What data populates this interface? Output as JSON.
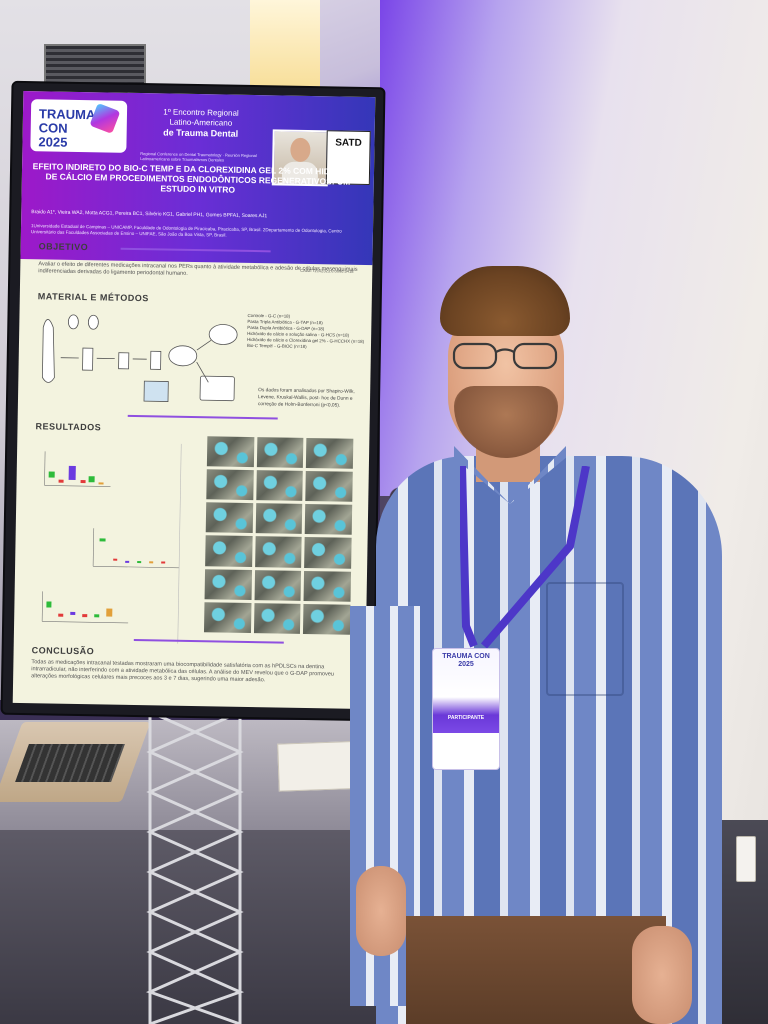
{
  "poster": {
    "logo": "TRAUMA CON 2025",
    "event_line1": "1º Encontro Regional",
    "event_line2": "Latino-Americano",
    "event_line3": "de Trauma Dental",
    "event_sub": "Regional Conference on Dental Traumatology · Reunión Regional Latinoamericana sobre Traumatismos Dentales",
    "society": "SATD",
    "title": "EFEITO INDIRETO DO BIO-C TEMP E DA CLOREXIDINA GEL 2% COM HIDRÓXIDO DE CÁLCIO EM PROCEDIMENTOS ENDODÔNTICOS REGENERATIVOS: UM ESTUDO IN VITRO",
    "authors": "Braido A1*, Vieira WA2, Motta ACG1, Pereira BC1, Silvério KG1, Gabriel PH1, Gomes BPFA1, Soares AJ1",
    "affiliations": "1Universidade Estadual de Campinas – UNICAMP, Faculdade de Odontologia de Piracicaba, Piracicaba, SP, Brasil. 2Departamento de Odontologia, Centro Universitário das Faculdades Associadas de Ensino – UNIFAE, São João da Boa Vista, SP, Brasil.",
    "caae": "CAAE:72102323.0.0000.5418",
    "objective_heading": "OBJETIVO",
    "objective_text": "Avaliar o efeito de diferentes medicações intracanal nos PERs quanto à atividade metabólica e adesão de células mesenquimais indiferenciadas derivadas do ligamento periodontal humano.",
    "methods_heading": "MATERIAL E MÉTODOS",
    "groups": [
      "Controle - G-C (n=18)",
      "Pasta Tripla Antibiótica - G-TAP (n=18)",
      "Pasta Dupla Antibiótica - G-DAP (n=18)",
      "Hidróxido de cálcio e solução salina - G-HCS (n=18)",
      "Hidróxido de cálcio e Clorexidina gel 2% - G-HCCHX (n=18)",
      "Bio-C Temp® - G-BIOC (n=18)"
    ],
    "stats_text": "Os dados foram analisados por Shapiro-Wilk, Levene, Kruskal-Wallis, post- hoc de Dunn e correção de Holm-Bonferroni (p<0,05).",
    "results_heading": "RESULTADOS",
    "conclusion_heading": "CONCLUSÃO",
    "conclusion_text": "Todas as medicações intracanal testadas mostraram uma biocompatibilidade satisfatória com as hPDLSCs na dentina intrarradicular, não interferindo com a atividade metabólica das células. A análise do MEV revelou que o G-DAP promoveu alterações morfológicas celulares mais precoces aos 3 e 7 dias, sugerindo uma maior adesão."
  },
  "badge": {
    "logo": "TRAUMA CON 2025",
    "role": "PARTICIPANTE"
  }
}
